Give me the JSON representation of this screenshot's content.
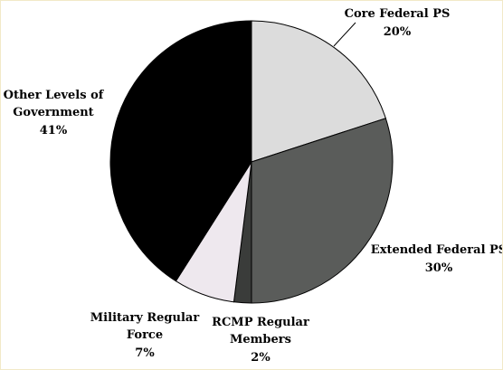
{
  "chart_data": {
    "type": "pie",
    "title": "",
    "slices": [
      {
        "label_lines": [
          "Core Federal PS"
        ],
        "percent_text": "20%",
        "value": 20,
        "color": "#dcdcdc"
      },
      {
        "label_lines": [
          "Extended Federal PS"
        ],
        "percent_text": "30%",
        "value": 30,
        "color": "#5a5c5a"
      },
      {
        "label_lines": [
          "RCMP Regular",
          "Members"
        ],
        "percent_text": "2%",
        "value": 2,
        "color": "#3a3c3a"
      },
      {
        "label_lines": [
          "Military Regular",
          "Force"
        ],
        "percent_text": "7%",
        "value": 7,
        "color": "#eee8ee"
      },
      {
        "label_lines": [
          "Other Levels of",
          "Government"
        ],
        "percent_text": "41%",
        "value": 41,
        "color": "#000000"
      }
    ],
    "start_angle_deg": 0,
    "direction": "clockwise",
    "legend": "none",
    "label_placement": "outside"
  }
}
